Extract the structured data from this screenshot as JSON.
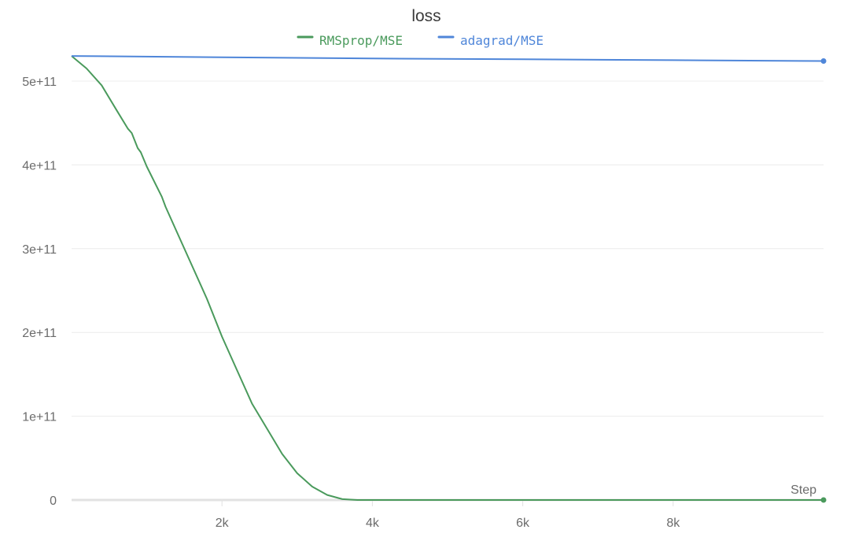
{
  "chart_data": {
    "type": "line",
    "title": "loss",
    "xlabel": "Step",
    "ylabel": "",
    "xlim": [
      0,
      10000
    ],
    "ylim": [
      0,
      530000000000.0
    ],
    "grid": true,
    "legend_position": "top-center",
    "x_ticks": [
      {
        "value": 2000,
        "label": "2k"
      },
      {
        "value": 4000,
        "label": "4k"
      },
      {
        "value": 6000,
        "label": "6k"
      },
      {
        "value": 8000,
        "label": "8k"
      }
    ],
    "y_ticks": [
      {
        "value": 0,
        "label": "0"
      },
      {
        "value": 100000000000.0,
        "label": "1e+11"
      },
      {
        "value": 200000000000.0,
        "label": "2e+11"
      },
      {
        "value": 300000000000.0,
        "label": "3e+11"
      },
      {
        "value": 400000000000.0,
        "label": "4e+11"
      },
      {
        "value": 500000000000.0,
        "label": "5e+11"
      }
    ],
    "series": [
      {
        "name": "RMSprop/MSE",
        "color": "#4a9a5c",
        "points": [
          [
            0,
            530000000000.0
          ],
          [
            200,
            515000000000.0
          ],
          [
            400,
            495000000000.0
          ],
          [
            600,
            465000000000.0
          ],
          [
            750,
            443000000000.0
          ],
          [
            800,
            438000000000.0
          ],
          [
            880,
            420000000000.0
          ],
          [
            920,
            415000000000.0
          ],
          [
            1000,
            398000000000.0
          ],
          [
            1200,
            362000000000.0
          ],
          [
            1250,
            350000000000.0
          ],
          [
            1400,
            320000000000.0
          ],
          [
            1600,
            280000000000.0
          ],
          [
            1800,
            240000000000.0
          ],
          [
            2000,
            195000000000.0
          ],
          [
            2200,
            155000000000.0
          ],
          [
            2400,
            115000000000.0
          ],
          [
            2600,
            85000000000.0
          ],
          [
            2800,
            55000000000.0
          ],
          [
            3000,
            32000000000.0
          ],
          [
            3200,
            16000000000.0
          ],
          [
            3400,
            6000000000.0
          ],
          [
            3600,
            1000000000.0
          ],
          [
            3800,
            0.0
          ],
          [
            4000,
            0.0
          ],
          [
            5000,
            0.0
          ],
          [
            6000,
            0.0
          ],
          [
            7000,
            0.0
          ],
          [
            8000,
            0.0
          ],
          [
            9000,
            0.0
          ],
          [
            10000,
            0.0
          ]
        ]
      },
      {
        "name": "adagrad/MSE",
        "color": "#4f86d9",
        "points": [
          [
            0,
            530000000000.0
          ],
          [
            2000,
            528500000000.0
          ],
          [
            4000,
            527000000000.0
          ],
          [
            6000,
            526000000000.0
          ],
          [
            8000,
            525000000000.0
          ],
          [
            10000,
            524000000000.0
          ]
        ]
      }
    ]
  }
}
